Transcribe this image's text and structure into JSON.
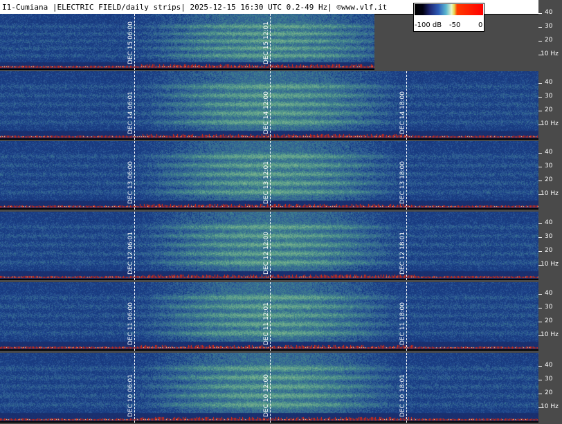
{
  "header": {
    "title": "I1-Cumiana |ELECTRIC FIELD/daily strips| 2025-12-15 16:30 UTC 0.2-49 Hz| ©www.vlf.it"
  },
  "colorbar": {
    "labels": [
      "-100 dB",
      "-50",
      "0"
    ]
  },
  "axis": {
    "labels": [
      "40",
      "30",
      "20",
      "10 Hz"
    ]
  },
  "strips": [
    {
      "day": "DEC 15",
      "times": [
        "06:00",
        "12:01"
      ]
    },
    {
      "day": "DEC 14",
      "times": [
        "06:01",
        "12:00",
        "18:00"
      ]
    },
    {
      "day": "DEC 13",
      "times": [
        "06:00",
        "12:01",
        "18:00"
      ]
    },
    {
      "day": "DEC 12",
      "times": [
        "06:01",
        "12:00",
        "18:01"
      ]
    },
    {
      "day": "DEC 11",
      "times": [
        "06:00",
        "12:01",
        "18:00"
      ]
    },
    {
      "day": "DEC 10",
      "times": [
        "06:01",
        "12:00",
        "18:01"
      ]
    }
  ],
  "colors": {
    "background": "#4a4a4a",
    "spectrogram_base": "#2c3a8c",
    "spectrogram_band": "#5e9e9a",
    "noise_floor": "#ff0000"
  }
}
